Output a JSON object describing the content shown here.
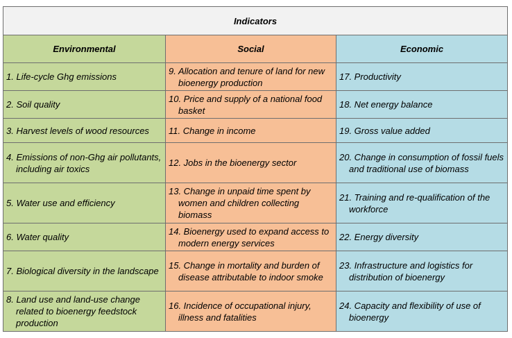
{
  "title": "Indicators",
  "colors": {
    "title_bg": "#f2f2f2",
    "environmental_bg": "#c5d89b",
    "social_bg": "#f7bf96",
    "economic_bg": "#b5dce5",
    "border": "#6e6e6e"
  },
  "columns": [
    "Environmental",
    "Social",
    "Economic"
  ],
  "rows": [
    [
      "1.  Life-cycle Ghg emissions",
      "9.  Allocation and tenure of land for new bioenergy production",
      "17. Productivity"
    ],
    [
      "2.  Soil quality",
      "10. Price and supply of a national food basket",
      "18. Net energy balance"
    ],
    [
      "3.  Harvest levels of wood resources",
      "11. Change in income",
      "19. Gross value added"
    ],
    [
      "4.  Emissions of non-Ghg air pollutants, including air toxics",
      "12. Jobs in the bioenergy sector",
      "20. Change in consumption of fossil fuels and traditional use of biomass"
    ],
    [
      "5.  Water use and efficiency",
      "13. Change in unpaid time spent by women and children collecting biomass",
      "21. Training and re-qualification of the workforce"
    ],
    [
      "6.  Water quality",
      "14.  Bioenergy used to expand access to modern energy services",
      "22. Energy diversity"
    ],
    [
      "7.  Biological diversity in the landscape",
      "15. Change in mortality and burden of disease attributable to indoor smoke",
      "23. Infrastructure and logistics for distribution of bioenergy"
    ],
    [
      "8.  Land use and land-use change related to bioenergy feedstock production",
      "16. Incidence of occupational injury, illness and fatalities",
      "24. Capacity and flexibility of use of bioenergy"
    ]
  ]
}
